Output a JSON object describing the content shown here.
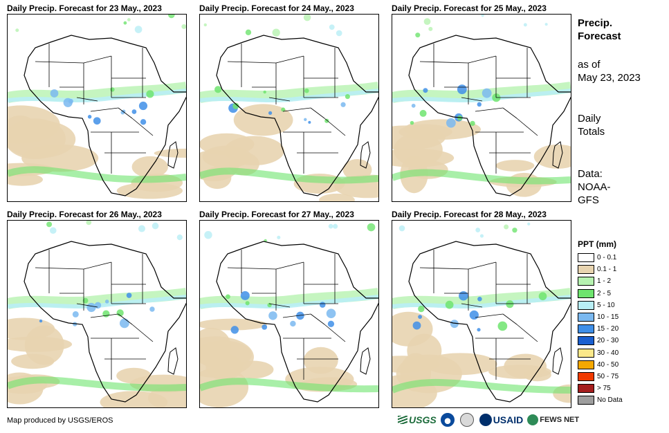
{
  "panels": [
    {
      "title": "Daily Precip. Forecast for 23 May., 2023"
    },
    {
      "title": "Daily Precip. Forecast for 24 May., 2023"
    },
    {
      "title": "Daily Precip. Forecast for 25 May., 2023"
    },
    {
      "title": "Daily Precip. Forecast for 26 May., 2023"
    },
    {
      "title": "Daily Precip. Forecast for 27 May., 2023"
    },
    {
      "title": "Daily Precip. Forecast for 28 May., 2023"
    }
  ],
  "side": {
    "title_line1": "Precip.",
    "title_line2": "Forecast",
    "asof_line1": "as of",
    "asof_line2": "May 23, 2023",
    "totals_line1": "Daily",
    "totals_line2": "Totals",
    "data_line1": "Data:",
    "data_line2": "NOAA-",
    "data_line3": "GFS"
  },
  "legend": {
    "title": "PPT (mm)",
    "items": [
      {
        "label": "0 - 0.1",
        "color": "#ffffff"
      },
      {
        "label": "0.1 - 1",
        "color": "#e8d4b0"
      },
      {
        "label": "1 - 2",
        "color": "#b6f2b0"
      },
      {
        "label": "2 - 5",
        "color": "#6ee46e"
      },
      {
        "label": "5 - 10",
        "color": "#b8eef5"
      },
      {
        "label": "10 - 15",
        "color": "#7ab8f0"
      },
      {
        "label": "15 - 20",
        "color": "#3f8fe8"
      },
      {
        "label": "20 - 30",
        "color": "#1a5fd0"
      },
      {
        "label": "30 - 40",
        "color": "#fbe88a"
      },
      {
        "label": "40 - 50",
        "color": "#f5a800"
      },
      {
        "label": "50 - 75",
        "color": "#f03a00"
      },
      {
        "label": "> 75",
        "color": "#a51e1e"
      },
      {
        "label": "No Data",
        "color": "#9e9e9e"
      }
    ]
  },
  "footer": {
    "credit": "Map produced by USGS/EROS",
    "logo_usgs": "USGS",
    "logo_usaid": "USAID",
    "logo_fews": "FEWS NET"
  }
}
